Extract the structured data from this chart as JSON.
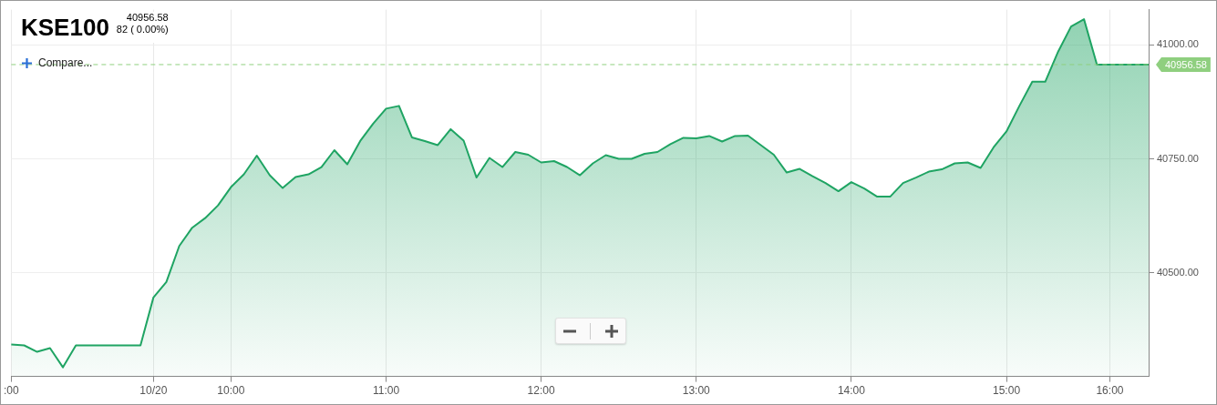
{
  "chart_data": {
    "type": "area",
    "title": "KSE100",
    "subtitle": "40956.58",
    "annotations": [
      "82 ( 0.00%)",
      "Compare..."
    ],
    "categories": [
      ":00",
      null,
      null,
      null,
      null,
      null,
      null,
      null,
      null,
      null,
      null,
      "10/20",
      null,
      null,
      null,
      null,
      null,
      "10:00",
      null,
      null,
      null,
      null,
      null,
      null,
      null,
      null,
      null,
      null,
      null,
      "11:00",
      null,
      null,
      null,
      null,
      null,
      null,
      null,
      null,
      null,
      null,
      null,
      "12:00",
      null,
      null,
      null,
      null,
      null,
      null,
      null,
      null,
      null,
      null,
      null,
      "13:00",
      null,
      null,
      null,
      null,
      null,
      null,
      null,
      null,
      null,
      null,
      null,
      "14:00",
      null,
      null,
      null,
      null,
      null,
      null,
      null,
      null,
      null,
      null,
      null,
      "15:00",
      null,
      null,
      null,
      null,
      null,
      null,
      null,
      "16:00",
      null,
      null,
      null
    ],
    "series": [
      {
        "color": "#1fa463",
        "values": [
          40343,
          40341,
          40327,
          40335,
          40293,
          40341,
          40341,
          40341,
          40341,
          40341,
          40341,
          40446,
          40480,
          40559,
          40599,
          40620,
          40648,
          40688,
          40716,
          40757,
          40714,
          40686,
          40710,
          40716,
          40732,
          40769,
          40738,
          40789,
          40827,
          40860,
          40866,
          40797,
          40789,
          40780,
          40815,
          40790,
          40709,
          40752,
          40732,
          40765,
          40759,
          40742,
          40745,
          40732,
          40714,
          40740,
          40758,
          40750,
          40750,
          40761,
          40765,
          40782,
          40796,
          40795,
          40800,
          40788,
          40800,
          40801,
          40780,
          40759,
          40720,
          40728,
          40712,
          40697,
          40679,
          40699,
          40685,
          40667,
          40667,
          40697,
          40709,
          40722,
          40727,
          40740,
          40742,
          40730,
          40775,
          40810,
          40866,
          40919,
          40919,
          40985,
          41040,
          41056,
          40956.58,
          40956.58,
          40956.58,
          40956.58,
          40956.58
        ]
      }
    ],
    "ylim": [
      40273,
      41077
    ],
    "yticks": [
      {
        "value": 40500,
        "label": "40500.00"
      },
      {
        "value": 40750,
        "label": "40750.00"
      },
      {
        "value": 41000,
        "label": "41000.00"
      }
    ],
    "ref_lines": [
      {
        "axis": "y",
        "value": 40956.58,
        "label": "40956.58",
        "color": "#8fcf7f",
        "line_style": "dashed"
      }
    ],
    "grid": true,
    "marker": "none"
  }
}
